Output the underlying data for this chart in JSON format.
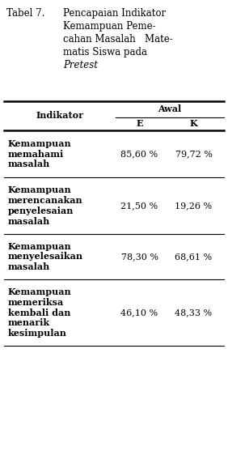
{
  "title_label": "Tabel 7.",
  "title_lines": [
    "Pencapaian Indikator",
    "Kemampuan Peme-",
    "cahan Masalah   Mate-",
    "matis Siswa pada"
  ],
  "title_italic": "Pretest",
  "col_header_main": "Awal",
  "col_header_sub": [
    "E",
    "K"
  ],
  "row_label": "Indikator",
  "rows": [
    {
      "indicator": "Kemampuan\nmemahami\nmasalah",
      "E": "85,60 %",
      "K": "79,72 %"
    },
    {
      "indicator": "Kemampuan\nmerencanakan\npenyelesaian\nmasalah",
      "E": "21,50 %",
      "K": "19,26 %"
    },
    {
      "indicator": "Kemampuan\nmenyelesaikan\nmasalah",
      "E": "78,30 %",
      "K": "68,61 %"
    },
    {
      "indicator": "Kemampuan\nmemeriksa\nkembali dan\nmenarik\nkesimpulan",
      "E": "46,10 %",
      "K": "48,33 %"
    }
  ],
  "bg_color": "#ffffff",
  "text_color": "#000000",
  "font_size": 8.0,
  "title_font_size": 8.5
}
